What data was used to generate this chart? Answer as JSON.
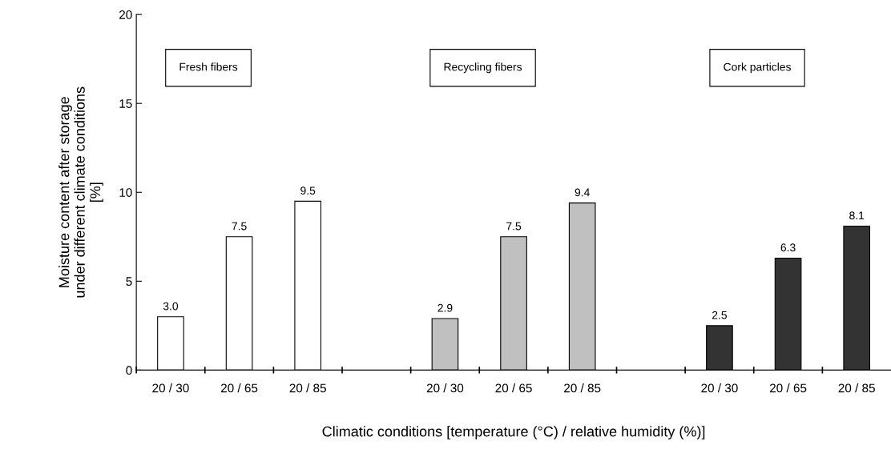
{
  "chart_data": {
    "type": "bar",
    "xlabel": "Climatic conditions [temperature (°C) / relative humidity (%)]",
    "ylabel": "Moisture content after storage\nunder different climate conditions\n[%]",
    "categories": [
      "20 / 30",
      "20 / 65",
      "20 / 85",
      null,
      "20 / 30",
      "20 / 65",
      "20 / 85",
      null,
      "20 / 30",
      "20 / 65",
      "20 / 85"
    ],
    "series": [
      {
        "color": "#ffffff",
        "values": [
          3.0,
          7.5,
          9.5,
          null,
          null,
          null,
          null,
          null,
          null,
          null,
          null
        ],
        "value_labels": [
          "3.0",
          "7.5",
          "9.5",
          null,
          null,
          null,
          null,
          null,
          null,
          null,
          null
        ]
      },
      {
        "color": "#c0c0c0",
        "values": [
          null,
          null,
          null,
          null,
          2.9,
          7.5,
          9.4,
          null,
          null,
          null,
          null
        ],
        "value_labels": [
          null,
          null,
          null,
          null,
          "2.9",
          "7.5",
          "9.4",
          null,
          null,
          null,
          null
        ]
      },
      {
        "color": "#333333",
        "values": [
          null,
          null,
          null,
          null,
          null,
          null,
          null,
          null,
          2.5,
          6.3,
          8.1
        ],
        "value_labels": [
          null,
          null,
          null,
          null,
          null,
          null,
          null,
          null,
          "2.5",
          "6.3",
          "8.1"
        ]
      }
    ],
    "annotations": [
      "Fresh fibers",
      "Recycling fibers",
      "Cork particles"
    ],
    "ylim": [
      0,
      20
    ],
    "yticks": [
      0,
      5,
      10,
      15,
      20
    ],
    "grid": false,
    "legend": false
  }
}
